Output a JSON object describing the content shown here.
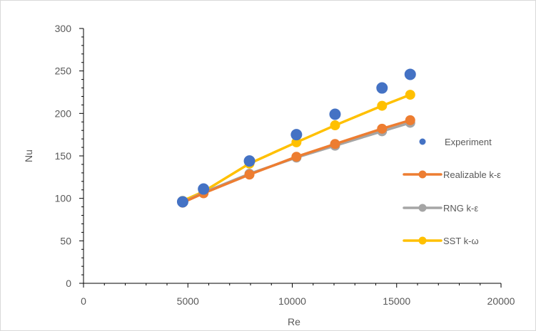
{
  "chart_data": {
    "type": "line",
    "xlabel": "Re",
    "ylabel": "Nu",
    "xlim": [
      0,
      20000
    ],
    "ylim": [
      0,
      300
    ],
    "xticks": [
      0,
      5000,
      10000,
      15000,
      20000
    ],
    "yticks": [
      0,
      50,
      100,
      150,
      200,
      250,
      300
    ],
    "grid": false,
    "legend_position": "right",
    "series": [
      {
        "name": "Experiment",
        "style": "markers",
        "color": "#4472C4",
        "x": [
          4750,
          5750,
          7950,
          10200,
          12050,
          14300,
          15650
        ],
        "y": [
          96,
          111,
          144,
          175,
          199,
          230,
          246
        ]
      },
      {
        "name": "Realizable k-ε",
        "style": "line-markers",
        "color": "#ED7D31",
        "x": [
          4750,
          5750,
          7950,
          10200,
          12050,
          14300,
          15650
        ],
        "y": [
          95,
          106,
          128,
          149,
          164,
          182,
          192
        ]
      },
      {
        "name": "RNG k-ε",
        "style": "line-markers",
        "color": "#A5A5A5",
        "x": [
          4750,
          5750,
          7950,
          10200,
          12050,
          14300,
          15650
        ],
        "y": [
          95,
          107,
          129,
          148,
          162,
          179,
          189
        ]
      },
      {
        "name": "SST k-ω",
        "style": "line-markers",
        "color": "#FFC000",
        "x": [
          4750,
          5750,
          7950,
          10200,
          12050,
          14300,
          15650
        ],
        "y": [
          97,
          108,
          141,
          166,
          186,
          209,
          222
        ]
      }
    ]
  }
}
